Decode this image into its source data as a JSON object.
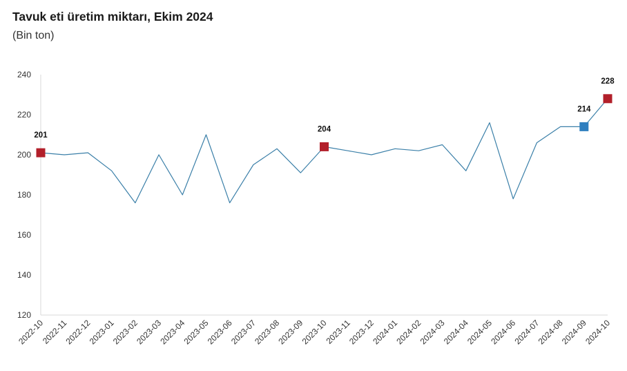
{
  "chart_data": {
    "type": "line",
    "title": "Tavuk eti üretim miktarı, Ekim 2024",
    "subtitle": "(Bin ton)",
    "xlabel": "",
    "ylabel": "",
    "ylim": [
      120,
      240
    ],
    "yticks": [
      120,
      140,
      160,
      180,
      200,
      220,
      240
    ],
    "grid": false,
    "categories": [
      "2022-10",
      "2022-11",
      "2022-12",
      "2023-01",
      "2023-02",
      "2023-03",
      "2023-04",
      "2023-05",
      "2023-06",
      "2023-07",
      "2023-08",
      "2023-09",
      "2023-10",
      "2023-11",
      "2023-12",
      "2024-01",
      "2024-02",
      "2024-03",
      "2024-04",
      "2024-05",
      "2024-06",
      "2024-07",
      "2024-08",
      "2024-09",
      "2024-10"
    ],
    "series": [
      {
        "name": "Tavuk eti üretim miktarı",
        "color": "#3a7fa8",
        "values": [
          201,
          200,
          201,
          192,
          176,
          200,
          180,
          210,
          176,
          195,
          203,
          191,
          204,
          202,
          200,
          203,
          202,
          205,
          192,
          216,
          178,
          206,
          214,
          214,
          228
        ]
      }
    ],
    "highlights": [
      {
        "category": "2022-10",
        "value": 201,
        "label": "201",
        "color": "#b21f2a"
      },
      {
        "category": "2023-10",
        "value": 204,
        "label": "204",
        "color": "#b21f2a"
      },
      {
        "category": "2024-09",
        "value": 214,
        "label": "214",
        "color": "#2f7fbf"
      },
      {
        "category": "2024-10",
        "value": 228,
        "label": "228",
        "color": "#b21f2a"
      }
    ]
  }
}
